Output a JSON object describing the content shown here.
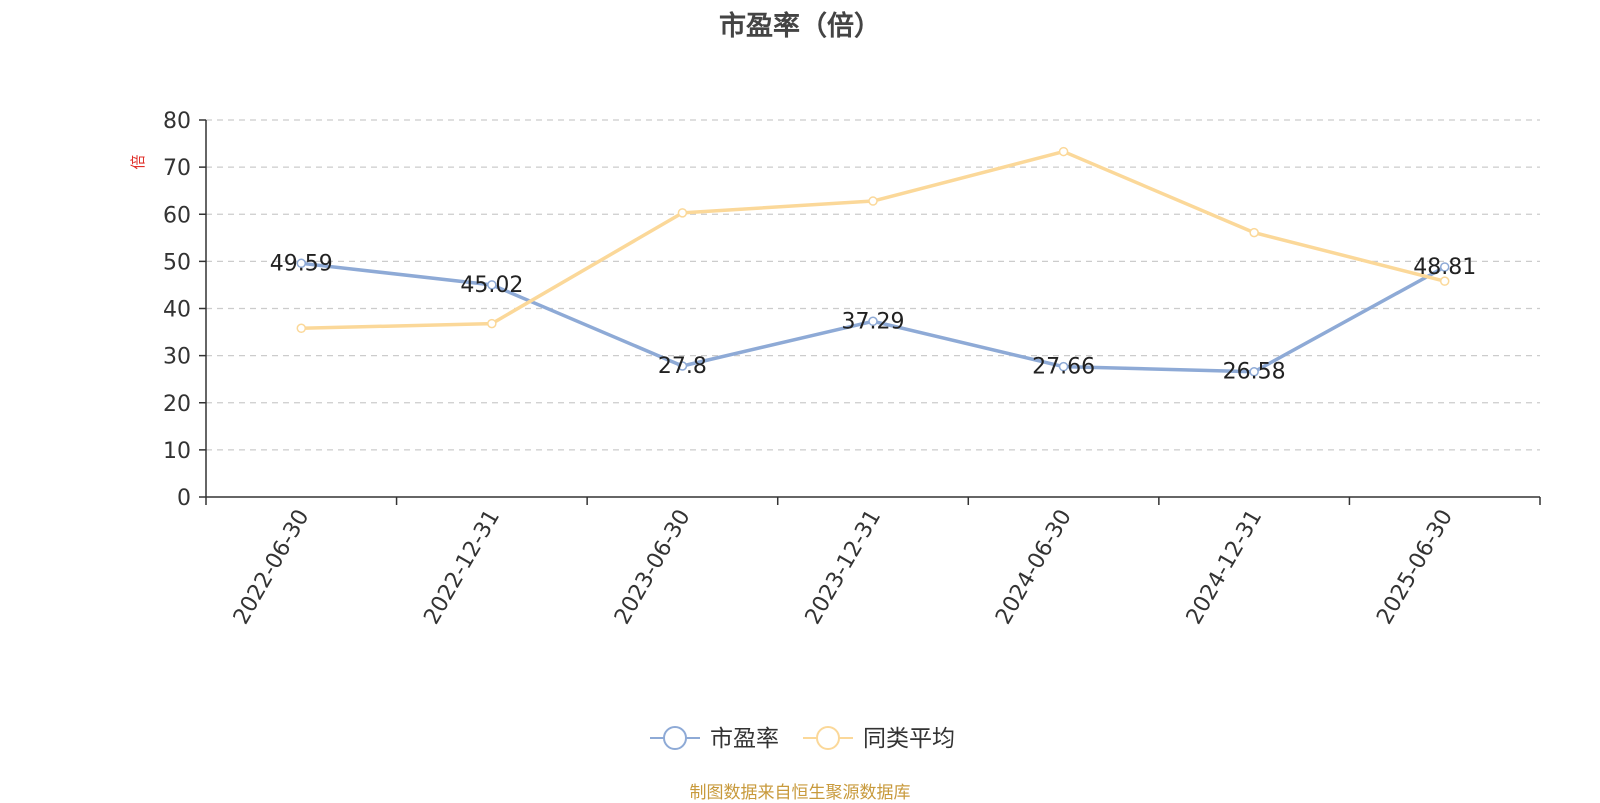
{
  "chart_data": {
    "type": "line",
    "title": "市盈率（倍）",
    "ylabel": "倍",
    "xlabel": "",
    "categories": [
      "2022-06-30",
      "2022-12-31",
      "2023-06-30",
      "2023-12-31",
      "2024-06-30",
      "2024-12-31",
      "2025-06-30"
    ],
    "ylim": [
      0,
      80
    ],
    "yticks": [
      0,
      10,
      20,
      30,
      40,
      50,
      60,
      70,
      80
    ],
    "grid": "horizontal-dashed",
    "legend_position": "bottom-center",
    "series": [
      {
        "name": "市盈率",
        "values": [
          49.59,
          45.02,
          27.8,
          37.29,
          27.66,
          26.58,
          48.81
        ],
        "color": "#8eaad6",
        "show_labels": true
      },
      {
        "name": "同类平均",
        "values": [
          35.8,
          36.8,
          60.3,
          62.8,
          73.3,
          56.1,
          45.8
        ],
        "color": "#fbd899",
        "show_labels": false
      }
    ]
  },
  "footer": {
    "text": "制图数据来自恒生聚源数据库",
    "color": "#c89a3c"
  },
  "colors": {
    "axis": "#333333",
    "grid": "#cccccc",
    "ylabel": "#e0302b",
    "label": "#222222"
  }
}
